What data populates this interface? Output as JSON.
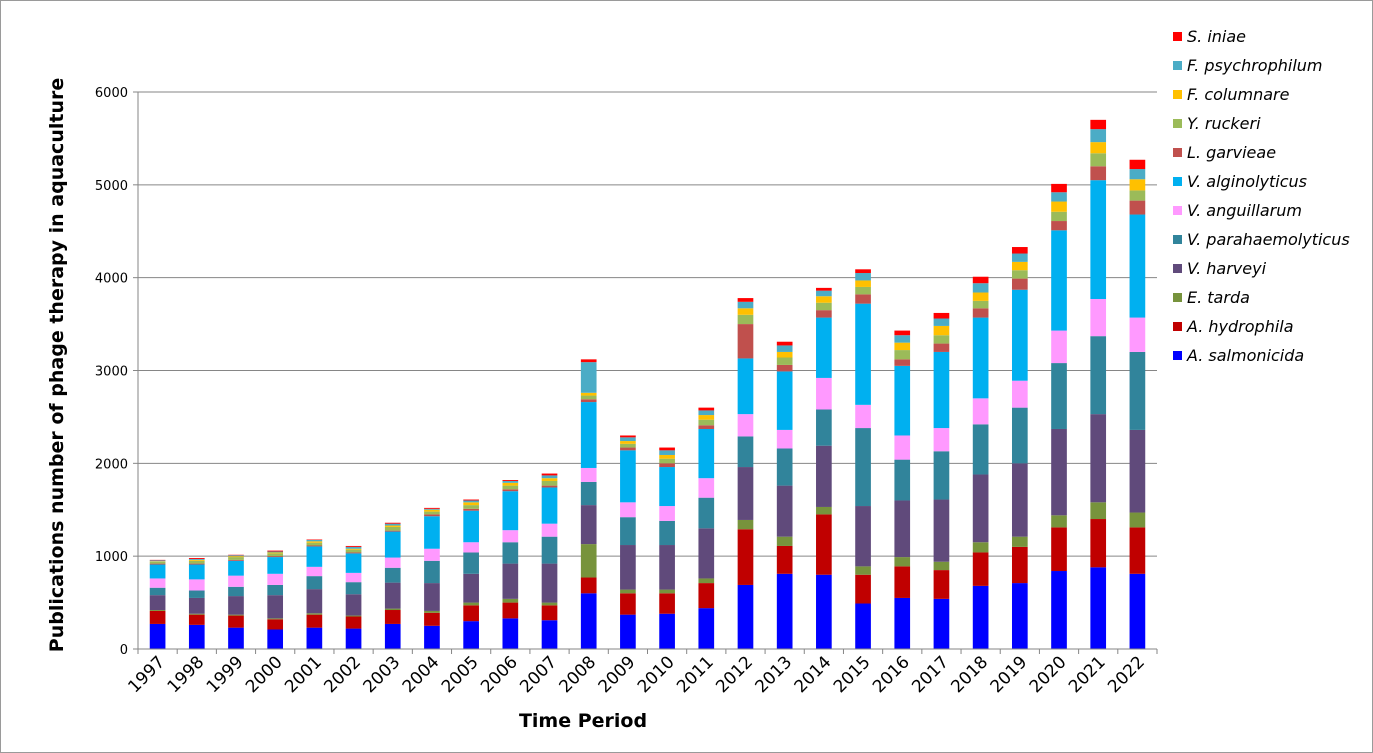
{
  "chart_data": {
    "type": "bar",
    "stacked": true,
    "title": "",
    "xlabel": "Time Period",
    "ylabel": "Publications number of phage therapy in aquaculture",
    "ylim": [
      0,
      6000
    ],
    "ytick_step": 1000,
    "yticks": [
      "0",
      "1000",
      "2000",
      "3000",
      "4000",
      "5000",
      "6000"
    ],
    "grid": true,
    "legend_position": "right",
    "categories": [
      "1997",
      "1998",
      "1999",
      "2000",
      "2001",
      "2002",
      "2003",
      "2004",
      "2005",
      "2006",
      "2007",
      "2008",
      "2009",
      "2010",
      "2011",
      "2012",
      "2013",
      "2014",
      "2015",
      "2016",
      "2017",
      "2018",
      "2019",
      "2020",
      "2021",
      "2022"
    ],
    "series": [
      {
        "name": "A. salmonicida",
        "color": "#0000ff",
        "values": [
          270,
          260,
          230,
          210,
          230,
          220,
          270,
          250,
          300,
          330,
          310,
          600,
          370,
          380,
          440,
          690,
          810,
          800,
          490,
          550,
          540,
          680,
          710,
          840,
          880,
          810
        ]
      },
      {
        "name": "A. hydrophila",
        "color": "#c00000",
        "values": [
          140,
          110,
          130,
          110,
          140,
          130,
          150,
          140,
          170,
          170,
          160,
          170,
          230,
          220,
          270,
          600,
          300,
          650,
          310,
          340,
          310,
          360,
          390,
          470,
          520,
          500
        ]
      },
      {
        "name": "E. tarda",
        "color": "#77933c",
        "values": [
          10,
          10,
          10,
          10,
          15,
          10,
          15,
          20,
          30,
          40,
          30,
          360,
          40,
          40,
          50,
          100,
          100,
          80,
          90,
          100,
          90,
          110,
          110,
          130,
          180,
          160
        ]
      },
      {
        "name": "V. harveyi",
        "color": "#604a7b",
        "values": [
          160,
          170,
          200,
          250,
          260,
          230,
          280,
          300,
          310,
          380,
          420,
          420,
          480,
          480,
          540,
          570,
          550,
          660,
          650,
          610,
          670,
          730,
          790,
          930,
          950,
          890
        ]
      },
      {
        "name": "V. parahaemolyticus",
        "color": "#31849b",
        "values": [
          80,
          80,
          100,
          110,
          140,
          130,
          160,
          240,
          230,
          230,
          290,
          250,
          300,
          260,
          330,
          330,
          400,
          390,
          840,
          440,
          520,
          540,
          600,
          710,
          840,
          840
        ]
      },
      {
        "name": "V. anguillarum",
        "color": "#ff99ff",
        "values": [
          100,
          120,
          120,
          120,
          100,
          100,
          110,
          130,
          110,
          130,
          140,
          150,
          160,
          160,
          210,
          240,
          200,
          340,
          250,
          260,
          250,
          280,
          290,
          350,
          400,
          370
        ]
      },
      {
        "name": "V. alginolyticus",
        "color": "#00b0f0",
        "values": [
          150,
          160,
          160,
          180,
          220,
          210,
          280,
          350,
          340,
          420,
          390,
          710,
          560,
          420,
          530,
          600,
          630,
          650,
          1090,
          750,
          820,
          870,
          980,
          1080,
          1280,
          1110
        ]
      },
      {
        "name": "L. garvieae",
        "color": "#c0504d",
        "values": [
          10,
          10,
          10,
          10,
          10,
          10,
          10,
          20,
          20,
          20,
          20,
          30,
          30,
          40,
          40,
          370,
          70,
          80,
          100,
          70,
          90,
          100,
          120,
          100,
          150,
          150
        ]
      },
      {
        "name": "Y. ruckeri",
        "color": "#9bbb59",
        "values": [
          20,
          30,
          30,
          30,
          30,
          30,
          40,
          30,
          40,
          40,
          50,
          40,
          40,
          50,
          60,
          100,
          80,
          80,
          80,
          100,
          90,
          80,
          90,
          100,
          140,
          110
        ]
      },
      {
        "name": "F. columnare",
        "color": "#ffc000",
        "values": [
          5,
          10,
          10,
          10,
          15,
          10,
          15,
          20,
          30,
          30,
          30,
          30,
          30,
          40,
          50,
          70,
          60,
          70,
          70,
          80,
          100,
          90,
          90,
          110,
          120,
          120
        ]
      },
      {
        "name": "F. psychrophilum",
        "color": "#4bacc6",
        "values": [
          10,
          10,
          10,
          10,
          15,
          20,
          20,
          10,
          20,
          20,
          30,
          330,
          40,
          50,
          50,
          70,
          70,
          60,
          80,
          80,
          80,
          100,
          90,
          100,
          140,
          110
        ]
      },
      {
        "name": "S. iniae",
        "color": "#ff0000",
        "values": [
          5,
          10,
          5,
          10,
          5,
          10,
          10,
          10,
          10,
          10,
          20,
          30,
          20,
          30,
          30,
          40,
          40,
          30,
          40,
          50,
          60,
          70,
          70,
          90,
          100,
          100
        ]
      }
    ]
  }
}
